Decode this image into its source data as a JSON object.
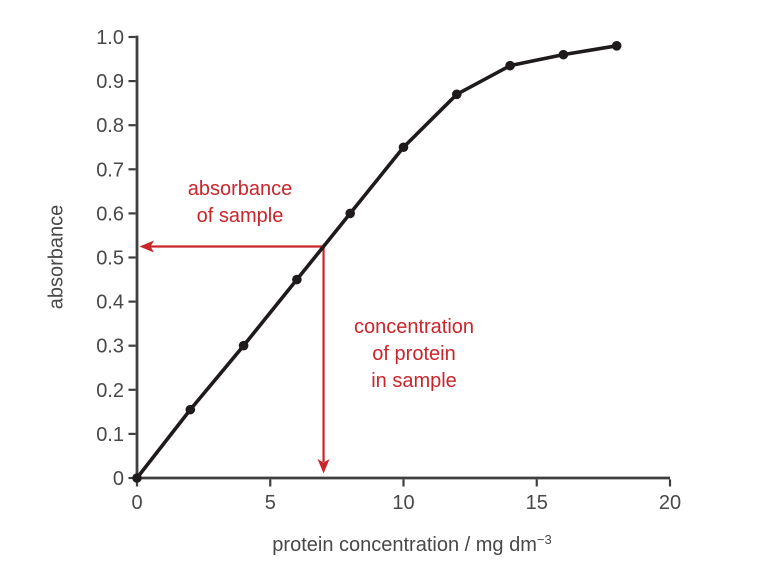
{
  "chart_data": {
    "type": "line",
    "title": "",
    "xlabel": "protein concentration / mg dm⁻³",
    "xlabel_main": "protein concentration / mg dm",
    "xlabel_sup": "−3",
    "ylabel": "absorbance",
    "x": [
      0,
      2,
      4,
      6,
      8,
      10,
      12,
      14,
      16,
      18
    ],
    "values": [
      0,
      0.155,
      0.3,
      0.45,
      0.6,
      0.75,
      0.87,
      0.935,
      0.96,
      0.98
    ],
    "xlim": [
      0,
      20
    ],
    "ylim": [
      0,
      1.0
    ],
    "xticks": [
      0,
      5,
      10,
      15,
      20
    ],
    "xtick_labels": [
      "0",
      "5",
      "10",
      "15",
      "20"
    ],
    "yticks": [
      0,
      0.1,
      0.2,
      0.3,
      0.4,
      0.5,
      0.6,
      0.7,
      0.8,
      0.9,
      1.0
    ],
    "ytick_labels": [
      "0",
      "0.1",
      "0.2",
      "0.3",
      "0.4",
      "0.5",
      "0.6",
      "0.7",
      "0.8",
      "0.9",
      "1.0"
    ],
    "grid": false,
    "legend": null,
    "marker": "filled-circle",
    "colors": {
      "curve": "#1f1b1c",
      "axis": "#3f3f41",
      "tick_text": "#48484a",
      "annotation_red": "#c9252b"
    },
    "annotations": {
      "absorbance_label": {
        "lines": [
          "absorbance",
          "of sample"
        ]
      },
      "concentration_label": {
        "lines": [
          "concentration",
          "of protein",
          "in sample"
        ]
      },
      "sample_absorbance": 0.525,
      "sample_concentration": 7
    }
  }
}
